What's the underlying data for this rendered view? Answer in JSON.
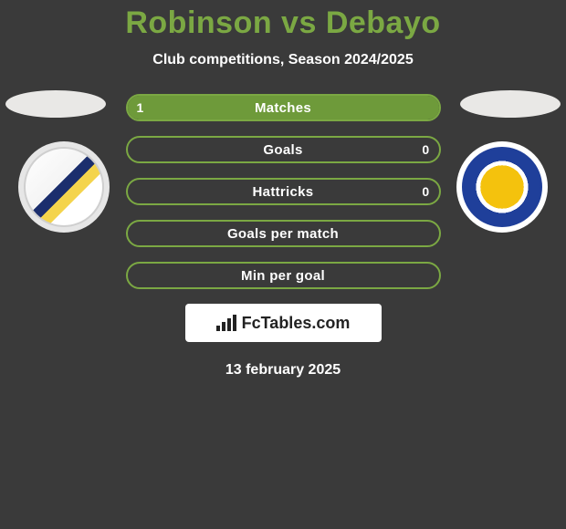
{
  "title": "Robinson vs Debayo",
  "title_color": "#7ba843",
  "subtitle": "Club competitions, Season 2024/2025",
  "text_color": "#ffffff",
  "background_color": "#3a3a3a",
  "ellipse_color": "#e9e8e6",
  "left_crest": {
    "outer_bg": "#e6e6e6",
    "inner_bg": "linear-gradient(135deg,#ffffff 0%,#f4f4f4 45%,#1b2e6d 45%,#1b2e6d 55%,#f4d44c 55%,#f4d44c 65%,#ffffff 65%)",
    "border": "#cfcfcf"
  },
  "right_crest": {
    "outer_bg": "#ffffff",
    "inner_bg": "radial-gradient(circle at 50% 50%, #f4c20d 0%, #f4c20d 40%, #ffffff 40%, #ffffff 48%, #1f3f9a 48%, #1f3f9a 100%)",
    "border": "#1f3f9a"
  },
  "bar_style": {
    "border_color": "#7ba843",
    "fill_color": "#6e9a3a",
    "empty_bg": "transparent",
    "height": 30,
    "radius": 16,
    "font_size": 15
  },
  "bars": [
    {
      "label": "Matches",
      "left": "1",
      "right": "",
      "left_pct": 100,
      "right_pct": 0
    },
    {
      "label": "Goals",
      "left": "",
      "right": "0",
      "left_pct": 0,
      "right_pct": 0
    },
    {
      "label": "Hattricks",
      "left": "",
      "right": "0",
      "left_pct": 0,
      "right_pct": 0
    },
    {
      "label": "Goals per match",
      "left": "",
      "right": "",
      "left_pct": 0,
      "right_pct": 0
    },
    {
      "label": "Min per goal",
      "left": "",
      "right": "",
      "left_pct": 0,
      "right_pct": 0
    }
  ],
  "branding": {
    "text": "FcTables.com",
    "bg": "#ffffff",
    "text_color": "#222222",
    "icon_bar_heights": [
      6,
      10,
      14,
      18
    ]
  },
  "date": "13 february 2025"
}
